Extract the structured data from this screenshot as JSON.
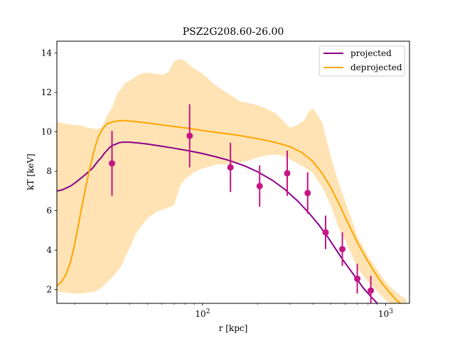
{
  "chart_data": {
    "type": "line",
    "title": "PSZ2G208.60-26.00",
    "xlabel": "r [kpc]",
    "ylabel": "kT [keV]",
    "xscale": "log",
    "xlim": [
      16,
      1350
    ],
    "ylim": [
      1.3,
      14.6
    ],
    "x_tick_labels": [
      {
        "value": 100,
        "base": "10",
        "exp": "2"
      },
      {
        "value": 1000,
        "base": "10",
        "exp": "3"
      }
    ],
    "y_ticks": [
      2,
      4,
      6,
      8,
      10,
      12,
      14
    ],
    "legend_position": "upper right",
    "colors": {
      "projected": "#8b008b",
      "deprojected": "#ffa500",
      "band": "#ffe1b0",
      "points": "#c71585"
    },
    "series": [
      {
        "name": "projected",
        "kind": "line",
        "color": "#8b008b",
        "x": [
          16,
          17,
          18,
          19,
          20,
          21,
          22,
          23,
          24,
          25,
          26,
          27,
          28,
          29,
          30,
          31,
          32,
          33,
          34,
          35,
          36,
          38,
          40,
          45,
          50,
          60,
          70,
          85,
          100,
          120,
          140,
          170,
          200,
          240,
          280,
          330,
          380,
          430,
          480,
          530,
          580,
          640,
          700,
          760,
          830,
          900,
          980,
          1060
        ],
        "y": [
          7.0,
          7.05,
          7.15,
          7.25,
          7.4,
          7.55,
          7.7,
          7.85,
          8.0,
          8.15,
          8.35,
          8.55,
          8.7,
          8.9,
          9.05,
          9.2,
          9.3,
          9.35,
          9.4,
          9.45,
          9.47,
          9.48,
          9.48,
          9.43,
          9.38,
          9.27,
          9.17,
          9.03,
          8.9,
          8.72,
          8.55,
          8.27,
          7.97,
          7.55,
          7.1,
          6.5,
          5.9,
          5.3,
          4.7,
          4.1,
          3.55,
          3.0,
          2.5,
          2.05,
          1.65,
          1.3,
          1.0,
          0.8
        ]
      },
      {
        "name": "deprojected",
        "kind": "line",
        "color": "#ffa500",
        "x": [
          16,
          17,
          18,
          19,
          20,
          21,
          22,
          23,
          24,
          25,
          26,
          27,
          28,
          29,
          30,
          32,
          34,
          36,
          38,
          40,
          45,
          50,
          60,
          70,
          85,
          100,
          120,
          150,
          180,
          220,
          260,
          300,
          350,
          400,
          450,
          500,
          560,
          620,
          700,
          780,
          860,
          950,
          1050,
          1150,
          1250,
          1350
        ],
        "y": [
          2.2,
          2.4,
          2.8,
          3.4,
          4.3,
          5.3,
          6.3,
          7.2,
          8.0,
          8.7,
          9.3,
          9.75,
          10.05,
          10.25,
          10.4,
          10.5,
          10.55,
          10.57,
          10.57,
          10.55,
          10.5,
          10.45,
          10.35,
          10.27,
          10.17,
          10.07,
          9.97,
          9.85,
          9.73,
          9.58,
          9.42,
          9.25,
          8.95,
          8.5,
          7.9,
          7.2,
          6.3,
          5.4,
          4.4,
          3.6,
          2.95,
          2.35,
          1.85,
          1.45,
          1.15,
          0.9
        ]
      },
      {
        "name": "deprojected uncertainty",
        "kind": "band",
        "color": "#ffe1b0",
        "x": [
          16,
          18,
          20,
          22,
          24,
          26,
          28,
          30,
          32,
          34,
          36,
          38,
          40,
          43,
          46,
          50,
          55,
          60,
          65,
          70,
          75,
          80,
          90,
          100,
          110,
          120,
          140,
          160,
          180,
          200,
          220,
          250,
          280,
          300,
          330,
          360,
          380,
          400,
          450,
          500,
          550,
          600,
          650,
          700,
          800,
          900,
          1000,
          1100,
          1200,
          1300
        ],
        "y_low": [
          1.9,
          1.85,
          1.8,
          1.8,
          1.85,
          1.9,
          2.1,
          2.35,
          2.6,
          2.9,
          3.2,
          3.7,
          4.1,
          4.8,
          5.2,
          5.6,
          5.9,
          6.05,
          6.15,
          6.3,
          7.2,
          7.6,
          7.95,
          8.15,
          8.25,
          8.35,
          8.35,
          8.45,
          8.55,
          8.7,
          8.8,
          8.85,
          8.78,
          8.6,
          8.4,
          8.2,
          8.05,
          7.9,
          7.2,
          6.3,
          5.2,
          4.5,
          3.8,
          3.1,
          2.4,
          1.9,
          1.45,
          1.2,
          1.05,
          0.9
        ],
        "y_high": [
          10.5,
          10.4,
          10.35,
          10.3,
          10.2,
          10.15,
          10.2,
          10.8,
          11.2,
          11.9,
          12.2,
          12.5,
          12.6,
          12.8,
          12.95,
          13.0,
          12.95,
          12.9,
          13.0,
          13.6,
          13.7,
          13.6,
          13.2,
          12.95,
          12.6,
          12.3,
          11.9,
          11.55,
          11.45,
          11.35,
          11.2,
          10.95,
          10.5,
          10.2,
          10.35,
          10.6,
          11.0,
          11.2,
          10.5,
          8.8,
          7.5,
          6.5,
          5.6,
          4.7,
          3.7,
          3.0,
          2.4,
          2.0,
          1.7,
          1.5
        ]
      },
      {
        "name": "data points",
        "kind": "errorbar",
        "color": "#c71585",
        "x": [
          32,
          85,
          142,
          205,
          290,
          375,
          470,
          580,
          700,
          830
        ],
        "y": [
          8.4,
          9.8,
          8.2,
          7.25,
          7.9,
          6.9,
          4.9,
          4.05,
          2.55,
          1.95
        ],
        "yerr": [
          1.65,
          1.6,
          1.25,
          1.05,
          1.15,
          1.05,
          0.85,
          0.85,
          0.75,
          0.75
        ]
      }
    ]
  }
}
